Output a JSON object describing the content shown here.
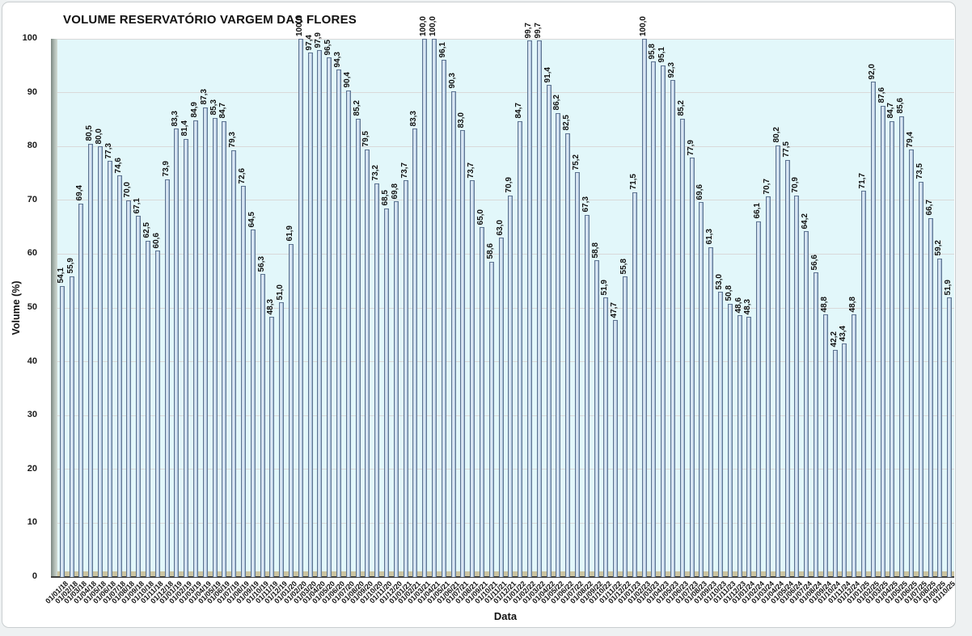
{
  "chart": {
    "title": "VOLUME RESERVATÓRIO VARGEM DAS FLORES",
    "xlabel": "Data",
    "ylabel": "Volume (%)"
  },
  "chart_data": {
    "type": "bar",
    "title": "VOLUME RESERVATÓRIO VARGEM DAS FLORES",
    "xlabel": "Data",
    "ylabel": "Volume (%)",
    "ylim": [
      0,
      100
    ],
    "ytick_step": 10,
    "grid": true,
    "legend": false,
    "plot_bg": "#e2f7fa",
    "bar_fill": "#c3d6ea",
    "bar_border": "#5d7390",
    "floor_color": "#ccc5a1",
    "categories": [
      "01/01/18",
      "01/02/18",
      "01/03/18",
      "01/04/18",
      "01/05/18",
      "01/06/18",
      "01/07/18",
      "01/08/18",
      "01/09/18",
      "01/10/18",
      "01/11/18",
      "01/12/18",
      "01/01/19",
      "01/02/19",
      "01/03/19",
      "01/04/19",
      "01/05/19",
      "01/06/19",
      "01/07/19",
      "01/08/19",
      "01/09/19",
      "01/10/19",
      "01/11/19",
      "01/12/19",
      "01/01/20",
      "01/02/20",
      "01/03/20",
      "01/04/20",
      "01/05/20",
      "01/06/20",
      "01/07/20",
      "01/08/20",
      "01/09/20",
      "01/10/20",
      "01/11/20",
      "01/12/20",
      "01/01/21",
      "01/02/21",
      "01/03/21",
      "01/04/21",
      "01/05/21",
      "01/06/21",
      "01/07/21",
      "01/08/21",
      "01/09/21",
      "01/10/21",
      "01/11/21",
      "01/12/21",
      "01/01/22",
      "01/02/22",
      "01/03/22",
      "01/04/22",
      "01/05/22",
      "01/06/22",
      "01/07/22",
      "01/08/22",
      "01/09/22",
      "01/10/22",
      "01/11/22",
      "01/12/22",
      "01/01/23",
      "01/02/23",
      "01/03/23",
      "01/04/23",
      "01/05/23",
      "01/06/23",
      "01/07/23",
      "01/08/23",
      "01/09/23",
      "01/10/23",
      "01/11/23",
      "01/12/23",
      "01/01/24",
      "01/02/24",
      "01/03/24",
      "01/04/24",
      "01/05/24",
      "01/06/24",
      "01/07/24",
      "01/08/24",
      "01/09/24",
      "01/10/24",
      "01/11/24",
      "01/12/24",
      "01/01/25",
      "01/02/25",
      "01/03/25",
      "01/04/25",
      "01/05/25",
      "01/06/25",
      "01/07/25",
      "01/08/25",
      "01/09/25",
      "01/10/25"
    ],
    "values": [
      54.1,
      55.9,
      69.4,
      80.5,
      80.0,
      77.3,
      74.6,
      70.0,
      67.1,
      62.5,
      60.6,
      73.9,
      83.3,
      81.4,
      84.9,
      87.3,
      85.3,
      84.7,
      79.3,
      72.6,
      64.5,
      56.3,
      48.3,
      51.0,
      61.9,
      100.0,
      97.4,
      97.9,
      96.5,
      94.3,
      90.4,
      85.2,
      79.5,
      73.2,
      68.5,
      69.8,
      73.7,
      83.3,
      100.0,
      100.0,
      96.1,
      90.3,
      83.0,
      73.7,
      65.0,
      58.6,
      63.0,
      70.9,
      84.7,
      99.7,
      99.7,
      91.4,
      86.2,
      82.5,
      75.2,
      67.3,
      58.8,
      51.9,
      47.7,
      55.8,
      71.5,
      100.0,
      95.8,
      95.1,
      92.3,
      85.2,
      77.9,
      69.6,
      61.3,
      53.0,
      50.8,
      48.6,
      48.3,
      66.1,
      70.7,
      80.2,
      77.5,
      70.9,
      64.2,
      56.6,
      48.8,
      42.2,
      43.4,
      48.8,
      71.7,
      92.0,
      87.6,
      84.7,
      85.6,
      79.4,
      73.5,
      66.7,
      59.2,
      51.9
    ],
    "value_labels": [
      "54,1",
      "55,9",
      "69,4",
      "80,5",
      "80,0",
      "77,3",
      "74,6",
      "70,0",
      "67,1",
      "62,5",
      "60,6",
      "73,9",
      "83,3",
      "81,4",
      "84,9",
      "87,3",
      "85,3",
      "84,7",
      "79,3",
      "72,6",
      "64,5",
      "56,3",
      "48,3",
      "51,0",
      "61,9",
      "100,0",
      "97,4",
      "97,9",
      "96,5",
      "94,3",
      "90,4",
      "85,2",
      "79,5",
      "73,2",
      "68,5",
      "69,8",
      "73,7",
      "83,3",
      "100,0",
      "100,0",
      "96,1",
      "90,3",
      "83,0",
      "73,7",
      "65,0",
      "58,6",
      "63,0",
      "70,9",
      "84,7",
      "99,7",
      "99,7",
      "91,4",
      "86,2",
      "82,5",
      "75,2",
      "67,3",
      "58,8",
      "51,9",
      "47,7",
      "55,8",
      "71,5",
      "100,0",
      "95,8",
      "95,1",
      "92,3",
      "85,2",
      "77,9",
      "69,6",
      "61,3",
      "53,0",
      "50,8",
      "48,6",
      "48,3",
      "66,1",
      "70,7",
      "80,2",
      "77,5",
      "70,9",
      "64,2",
      "56,6",
      "48,8",
      "42,2",
      "43,4",
      "48,8",
      "71,7",
      "92,0",
      "87,6",
      "84,7",
      "85,6",
      "79,4",
      "73,5",
      "66,7",
      "59,2",
      "51,9"
    ],
    "ytick_labels": [
      "0",
      "10",
      "20",
      "30",
      "40",
      "50",
      "60",
      "70",
      "80",
      "90",
      "100"
    ]
  }
}
